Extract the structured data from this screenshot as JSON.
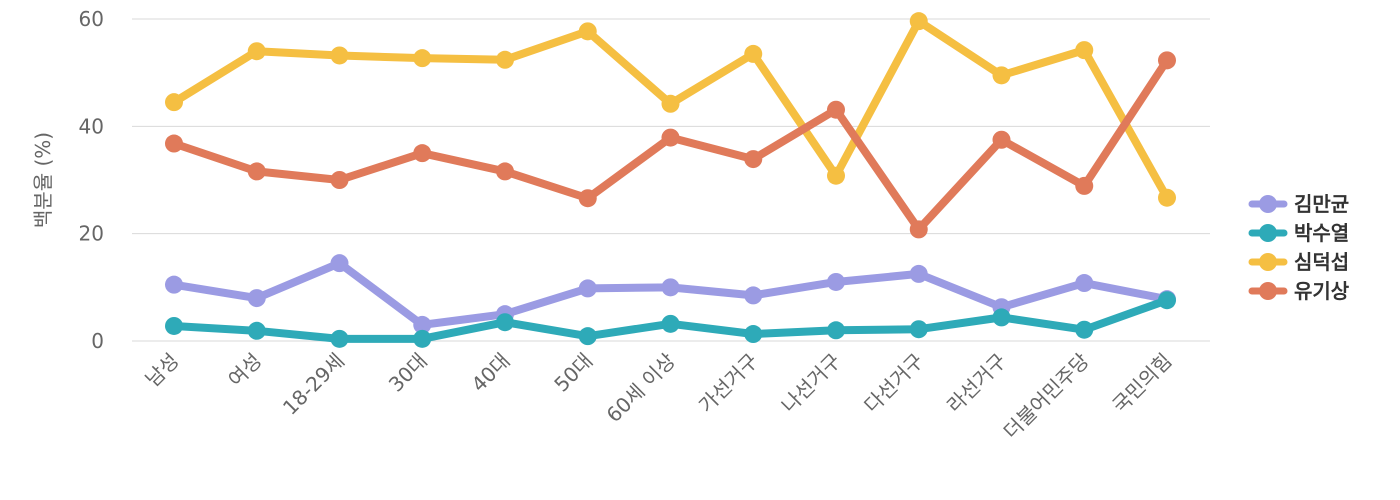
{
  "chart_data": {
    "type": "line",
    "ylabel": "백분율 (%)",
    "ylim": [
      0,
      60
    ],
    "yticks": [
      0,
      20,
      40,
      60
    ],
    "grid": true,
    "legend_position": "right",
    "categories": [
      "남성",
      "여성",
      "18-29세",
      "30대",
      "40대",
      "50대",
      "60세 이상",
      "가선거구",
      "나선거구",
      "다선거구",
      "라선거구",
      "더불어민주당",
      "국민의힘"
    ],
    "series": [
      {
        "name": "김만균",
        "color": "#9b9be3",
        "values": [
          10.5,
          8.0,
          14.5,
          3.0,
          5.0,
          9.8,
          10.0,
          8.5,
          11.0,
          12.5,
          6.3,
          10.8,
          7.8
        ]
      },
      {
        "name": "박수열",
        "color": "#2eaab8",
        "values": [
          2.8,
          1.9,
          0.4,
          0.4,
          3.5,
          0.9,
          3.2,
          1.3,
          2.0,
          2.2,
          4.4,
          2.1,
          7.6
        ]
      },
      {
        "name": "심덕섭",
        "color": "#f5bf42",
        "values": [
          44.5,
          54.0,
          53.2,
          52.7,
          52.4,
          57.7,
          44.2,
          53.5,
          30.8,
          59.6,
          49.5,
          54.2,
          26.7
        ]
      },
      {
        "name": "유기상",
        "color": "#e07a5a",
        "values": [
          36.8,
          31.6,
          30.0,
          35.0,
          31.6,
          26.6,
          37.9,
          33.9,
          43.1,
          20.8,
          37.5,
          28.9,
          52.3
        ]
      }
    ]
  }
}
